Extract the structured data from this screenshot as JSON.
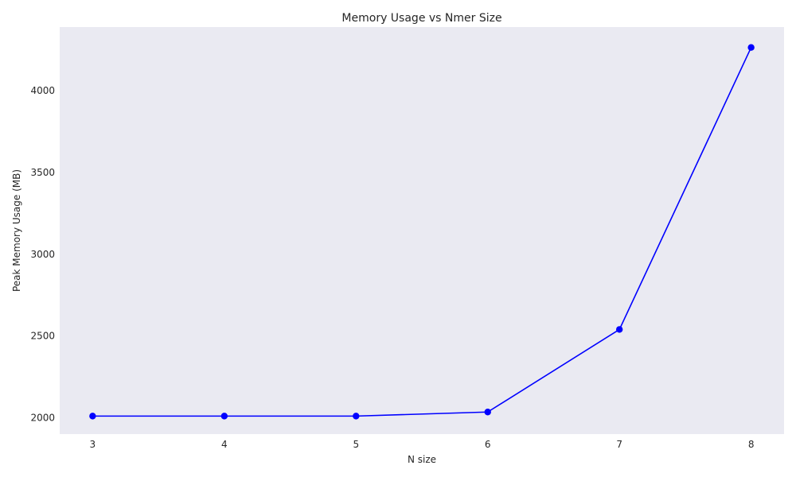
{
  "chart_data": {
    "type": "line",
    "title": "Memory Usage vs Nmer Size",
    "xlabel": "N size",
    "ylabel": "Peak Memory Usage (MB)",
    "xlim": [
      2.75,
      8.25
    ],
    "ylim": [
      1900,
      4390
    ],
    "x_ticks": [
      3,
      4,
      5,
      6,
      7,
      8
    ],
    "y_ticks": [
      2000,
      2500,
      3000,
      3500,
      4000
    ],
    "grid": false,
    "series": [
      {
        "x": [
          3,
          4,
          5,
          6,
          7,
          8
        ],
        "y": [
          2010,
          2010,
          2010,
          2035,
          2540,
          4265
        ],
        "color": "#0000ff",
        "marker": "circle"
      }
    ],
    "background_color": "#eaeaf2"
  }
}
